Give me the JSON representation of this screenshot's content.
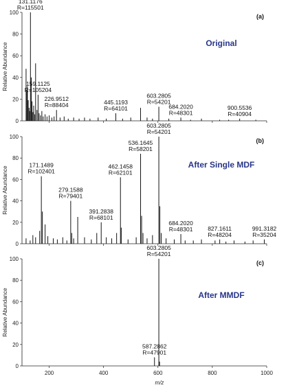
{
  "figure": {
    "xlabel": "m/z"
  },
  "chart_data": [
    {
      "type": "bar",
      "panel_tag": "(a)",
      "title": "Original",
      "title_color": "#27358a",
      "ylabel": "Relative Abundance",
      "xlim": [
        100,
        1000
      ],
      "ylim": [
        0,
        100
      ],
      "xticks": [
        200,
        400,
        600,
        800,
        1000
      ],
      "yticks": [
        0,
        20,
        40,
        60,
        80,
        100
      ],
      "peaks": [
        {
          "x": 115,
          "y": 48
        },
        {
          "x": 118,
          "y": 28
        },
        {
          "x": 120,
          "y": 32
        },
        {
          "x": 123,
          "y": 19
        },
        {
          "x": 126,
          "y": 12
        },
        {
          "x": 128,
          "y": 9
        },
        {
          "x": 131.1176,
          "y": 100
        },
        {
          "x": 134,
          "y": 40
        },
        {
          "x": 137,
          "y": 18
        },
        {
          "x": 140,
          "y": 8
        },
        {
          "x": 143,
          "y": 14
        },
        {
          "x": 147,
          "y": 6
        },
        {
          "x": 150,
          "y": 53
        },
        {
          "x": 155,
          "y": 10
        },
        {
          "x": 159.1125,
          "y": 24
        },
        {
          "x": 163,
          "y": 7
        },
        {
          "x": 168,
          "y": 5
        },
        {
          "x": 173,
          "y": 9
        },
        {
          "x": 178,
          "y": 4
        },
        {
          "x": 185,
          "y": 6
        },
        {
          "x": 192,
          "y": 4
        },
        {
          "x": 200,
          "y": 5
        },
        {
          "x": 210,
          "y": 3
        },
        {
          "x": 218,
          "y": 4
        },
        {
          "x": 226.9512,
          "y": 10
        },
        {
          "x": 240,
          "y": 3
        },
        {
          "x": 255,
          "y": 4
        },
        {
          "x": 270,
          "y": 2
        },
        {
          "x": 290,
          "y": 3
        },
        {
          "x": 310,
          "y": 2
        },
        {
          "x": 330,
          "y": 3
        },
        {
          "x": 350,
          "y": 2
        },
        {
          "x": 380,
          "y": 3
        },
        {
          "x": 410,
          "y": 2
        },
        {
          "x": 445.1193,
          "y": 7
        },
        {
          "x": 470,
          "y": 2
        },
        {
          "x": 500,
          "y": 3
        },
        {
          "x": 536,
          "y": 12
        },
        {
          "x": 560,
          "y": 3
        },
        {
          "x": 580,
          "y": 2
        },
        {
          "x": 603.2805,
          "y": 13
        },
        {
          "x": 640,
          "y": 2
        },
        {
          "x": 684.202,
          "y": 3
        },
        {
          "x": 720,
          "y": 1
        },
        {
          "x": 760,
          "y": 2
        },
        {
          "x": 827,
          "y": 1
        },
        {
          "x": 860,
          "y": 1
        },
        {
          "x": 900.5536,
          "y": 2
        },
        {
          "x": 960,
          "y": 1
        }
      ],
      "annotations": [
        {
          "x": 131.1176,
          "lines": [
            "131.1176",
            "R=115501"
          ]
        },
        {
          "x": 159.1125,
          "lines": [
            "159.1125",
            "R=105204"
          ]
        },
        {
          "x": 226.9512,
          "lines": [
            "226.9512",
            "R=88404"
          ]
        },
        {
          "x": 445.1193,
          "lines": [
            "445.1193",
            "R=64101"
          ]
        },
        {
          "x": 603.2805,
          "lines": [
            "603.2805",
            "R=54201"
          ]
        },
        {
          "x": 684.202,
          "lines": [
            "684.2020",
            "R=48301"
          ]
        },
        {
          "x": 900.5536,
          "lines": [
            "900.5536",
            "R=40904"
          ]
        }
      ]
    },
    {
      "type": "bar",
      "panel_tag": "(b)",
      "title": "After Single MDF",
      "title_color": "#27358a",
      "ylabel": "Relative Abundance",
      "xlim": [
        100,
        1000
      ],
      "ylim": [
        0,
        100
      ],
      "xticks": [
        200,
        400,
        600,
        800,
        1000
      ],
      "yticks": [
        0,
        20,
        40,
        60,
        80,
        100
      ],
      "peaks": [
        {
          "x": 115,
          "y": 5
        },
        {
          "x": 130,
          "y": 3
        },
        {
          "x": 140,
          "y": 8
        },
        {
          "x": 150,
          "y": 6
        },
        {
          "x": 165,
          "y": 12
        },
        {
          "x": 171.1489,
          "y": 63
        },
        {
          "x": 175,
          "y": 30
        },
        {
          "x": 185,
          "y": 18
        },
        {
          "x": 195,
          "y": 7
        },
        {
          "x": 215,
          "y": 5
        },
        {
          "x": 230,
          "y": 4
        },
        {
          "x": 250,
          "y": 6
        },
        {
          "x": 265,
          "y": 3
        },
        {
          "x": 279.1588,
          "y": 40
        },
        {
          "x": 283,
          "y": 10
        },
        {
          "x": 290,
          "y": 5
        },
        {
          "x": 305,
          "y": 25
        },
        {
          "x": 330,
          "y": 6
        },
        {
          "x": 355,
          "y": 4
        },
        {
          "x": 375,
          "y": 10
        },
        {
          "x": 391.2838,
          "y": 20
        },
        {
          "x": 410,
          "y": 6
        },
        {
          "x": 430,
          "y": 5
        },
        {
          "x": 448,
          "y": 10
        },
        {
          "x": 462.1458,
          "y": 62
        },
        {
          "x": 465,
          "y": 15
        },
        {
          "x": 490,
          "y": 4
        },
        {
          "x": 520,
          "y": 6
        },
        {
          "x": 536.1645,
          "y": 84
        },
        {
          "x": 540,
          "y": 26
        },
        {
          "x": 545,
          "y": 10
        },
        {
          "x": 560,
          "y": 5
        },
        {
          "x": 580,
          "y": 8
        },
        {
          "x": 603.2805,
          "y": 100
        },
        {
          "x": 607,
          "y": 35
        },
        {
          "x": 612,
          "y": 10
        },
        {
          "x": 630,
          "y": 5
        },
        {
          "x": 660,
          "y": 4
        },
        {
          "x": 684.202,
          "y": 9
        },
        {
          "x": 700,
          "y": 3
        },
        {
          "x": 730,
          "y": 3
        },
        {
          "x": 760,
          "y": 4
        },
        {
          "x": 810,
          "y": 3
        },
        {
          "x": 827.1611,
          "y": 4
        },
        {
          "x": 850,
          "y": 2
        },
        {
          "x": 880,
          "y": 3
        },
        {
          "x": 920,
          "y": 2
        },
        {
          "x": 950,
          "y": 3
        },
        {
          "x": 991.3182,
          "y": 4
        }
      ],
      "annotations": [
        {
          "x": 171.1489,
          "lines": [
            "171.1489",
            "R=102401"
          ]
        },
        {
          "x": 279.1588,
          "lines": [
            "279.1588",
            "R=79401"
          ]
        },
        {
          "x": 391.2838,
          "lines": [
            "391.2838",
            "R=68101"
          ]
        },
        {
          "x": 462.1458,
          "lines": [
            "462.1458",
            "R=62101"
          ]
        },
        {
          "x": 536.1645,
          "lines": [
            "536.1645",
            "R=58201"
          ]
        },
        {
          "x": 603.2805,
          "lines": [
            "603.2805",
            "R=54201"
          ]
        },
        {
          "x": 684.202,
          "lines": [
            "684.2020",
            "R=48301"
          ]
        },
        {
          "x": 827.1611,
          "lines": [
            "827.1611",
            "R=48204"
          ]
        },
        {
          "x": 991.3182,
          "lines": [
            "991.3182",
            "R=35204"
          ]
        }
      ]
    },
    {
      "type": "bar",
      "panel_tag": "(c)",
      "title": "After MMDF",
      "title_color": "#27358a",
      "ylabel": "Relative Abundance",
      "xlim": [
        100,
        1000
      ],
      "ylim": [
        0,
        100
      ],
      "xticks": [
        200,
        400,
        600,
        800,
        1000
      ],
      "yticks": [
        0,
        20,
        40,
        60,
        80,
        100
      ],
      "peaks": [
        {
          "x": 587.2862,
          "y": 8
        },
        {
          "x": 603.2805,
          "y": 100
        },
        {
          "x": 606,
          "y": 4
        }
      ],
      "annotations": [
        {
          "x": 587.2862,
          "lines": [
            "587.2862",
            "R=47901"
          ]
        },
        {
          "x": 603.2805,
          "lines": [
            "603.2805",
            "R=54201"
          ]
        }
      ]
    }
  ]
}
